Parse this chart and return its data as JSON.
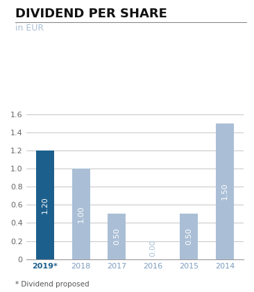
{
  "title": "DIVIDEND PER SHARE",
  "subtitle": "in EUR",
  "categories": [
    "2019*",
    "2018",
    "2017",
    "2016",
    "2015",
    "2014"
  ],
  "values": [
    1.2,
    1.0,
    0.5,
    0.0,
    0.5,
    1.5
  ],
  "bar_colors": [
    "#1c5f8c",
    "#aabfd6",
    "#aabfd6",
    "#aabfd6",
    "#aabfd6",
    "#aabfd6"
  ],
  "label_colors": [
    "#ffffff",
    "#ffffff",
    "#ffffff",
    "#aabfd6",
    "#ffffff",
    "#ffffff"
  ],
  "bar_labels": [
    "1.20",
    "1.00",
    "0.50",
    "0.00",
    "0.50",
    "1.50"
  ],
  "ylim": [
    0,
    1.8
  ],
  "yticks": [
    0,
    0.2,
    0.4,
    0.6,
    0.8,
    1.0,
    1.2,
    1.4,
    1.6
  ],
  "footnote": "* Dividend proposed",
  "title_color": "#111111",
  "subtitle_color": "#aabfd6",
  "tick_label_color_2019": "#1c5f8c",
  "tick_label_color_others": "#7a9bbf",
  "background_color": "#ffffff",
  "grid_color": "#bbbbbb",
  "separator_color": "#888888",
  "title_fontsize": 13,
  "subtitle_fontsize": 9,
  "bar_label_fontsize": 8,
  "tick_fontsize": 8,
  "footnote_fontsize": 7.5
}
